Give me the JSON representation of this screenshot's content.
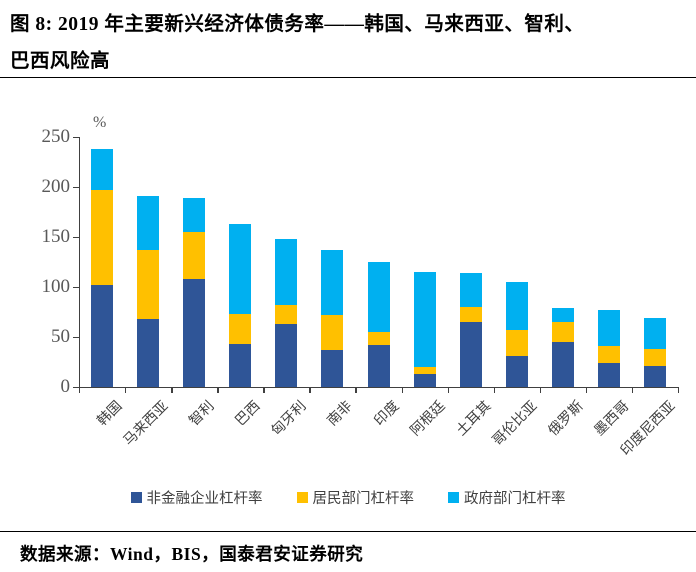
{
  "title": {
    "line1": "图 8: 2019 年主要新兴经济体债务率——韩国、马来西亚、智利、",
    "line2": "巴西风险高"
  },
  "chart_data": {
    "type": "bar",
    "subtype": "stacked-column",
    "unit_label": "%",
    "categories": [
      "韩国",
      "马来西亚",
      "智利",
      "巴西",
      "匈牙利",
      "南非",
      "印度",
      "阿根廷",
      "土耳其",
      "哥伦比亚",
      "俄罗斯",
      "墨西哥",
      "印度尼西亚"
    ],
    "series": [
      {
        "name": "非金融企业杠杆率",
        "color": "#2F5597",
        "values": [
          102,
          68,
          108,
          43,
          63,
          37,
          42,
          13,
          65,
          31,
          45,
          24,
          21
        ]
      },
      {
        "name": "居民部门杠杆率",
        "color": "#FFC000",
        "values": [
          95,
          69,
          47,
          30,
          19,
          35,
          13,
          7,
          15,
          26,
          20,
          17,
          17
        ]
      },
      {
        "name": "政府部门杠杆率",
        "color": "#00B0F0",
        "values": [
          41,
          54,
          34,
          90,
          66,
          65,
          70,
          95,
          34,
          48,
          14,
          36,
          31
        ]
      }
    ],
    "totals": [
      238,
      191,
      189,
      163,
      148,
      137,
      125,
      115,
      114,
      105,
      79,
      77,
      69
    ],
    "ylim": [
      0,
      250
    ],
    "yticks": [
      0,
      50,
      100,
      150,
      200,
      250
    ],
    "grid": "off",
    "legend_position": "bottom"
  },
  "source": "数据来源：Wind，BIS，国泰君安证券研究",
  "colors": {
    "axis": "#404040",
    "tick_text": "#595959",
    "label_text": "#3f3f3f",
    "title_text": "#000000"
  }
}
